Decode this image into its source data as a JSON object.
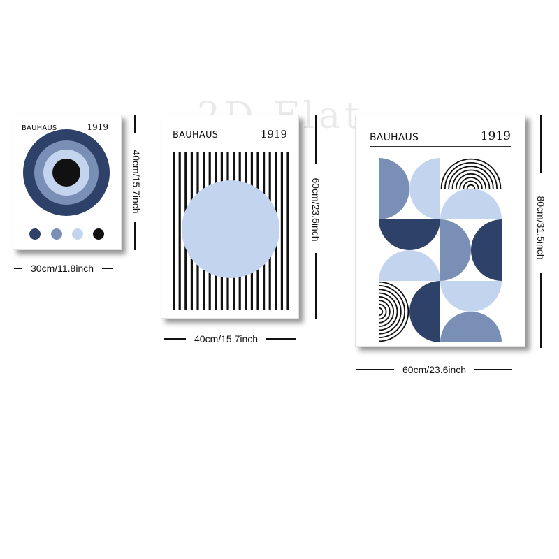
{
  "watermark": "2D Flat",
  "posters": [
    {
      "brand": "BAUHAUS",
      "year": "1919",
      "width_label": "30cm/11.8inch",
      "height_label": "40cm/15.7inch"
    },
    {
      "brand": "BAUHAUS",
      "year": "1919",
      "width_label": "40cm/15.7inch",
      "height_label": "60cm/23.6inch"
    },
    {
      "brand": "BAUHAUS",
      "year": "1919",
      "width_label": "60cm/23.6inch",
      "height_label": "80cm/31.5inch"
    }
  ],
  "colors": {
    "navy": "#2d4169",
    "mid_blue": "#7a8fb5",
    "light_blue": "#c3d4ef",
    "black": "#111111"
  }
}
